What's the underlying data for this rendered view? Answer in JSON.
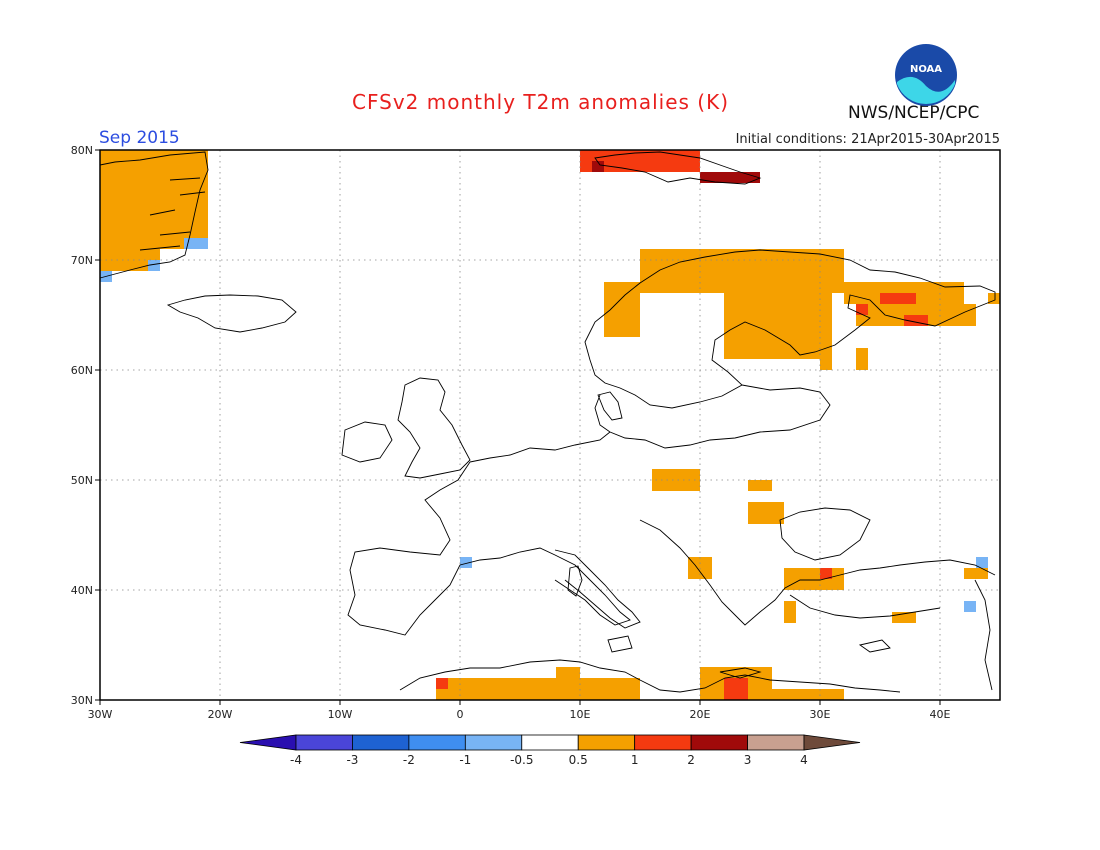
{
  "header": {
    "title": "CFSv2 monthly T2m anomalies (K)",
    "month": "Sep 2015",
    "initial_conditions": "Initial conditions: 21Apr2015-30Apr2015",
    "agency": "NWS/NCEP/CPC",
    "logo_text": "NOAA"
  },
  "map": {
    "lon_range": [
      -30,
      45
    ],
    "lat_range": [
      30,
      80
    ],
    "lat_ticks": [
      "80N",
      "70N",
      "60N",
      "50N",
      "40N",
      "30N"
    ],
    "lon_ticks": [
      "30W",
      "20W",
      "10W",
      "0",
      "10E",
      "20E",
      "30E",
      "40E"
    ],
    "anomaly_cells": [
      {
        "lon": -30,
        "lat": 71,
        "lon2": -21,
        "lat2": 80,
        "level": "0.5-1"
      },
      {
        "lon": -30,
        "lat": 69,
        "lon2": -25,
        "lat2": 71,
        "level": "0.5-1"
      },
      {
        "lon": -23,
        "lat": 71,
        "lon2": -21,
        "lat2": 72,
        "level": "-1--0.5"
      },
      {
        "lon": -26,
        "lat": 69,
        "lon2": -25,
        "lat2": 70,
        "level": "-1--0.5"
      },
      {
        "lon": -30,
        "lat": 68,
        "lon2": -29,
        "lat2": 69,
        "level": "-1--0.5"
      },
      {
        "lon": 10,
        "lat": 78,
        "lon2": 20,
        "lat2": 80,
        "level": "1-2"
      },
      {
        "lon": 20,
        "lat": 77,
        "lon2": 25,
        "lat2": 78,
        "level": "2-3"
      },
      {
        "lon": 11,
        "lat": 78,
        "lon2": 12,
        "lat2": 79,
        "level": "2-3"
      },
      {
        "lon": 12,
        "lat": 63,
        "lon2": 15,
        "lat2": 68,
        "level": "0.5-1"
      },
      {
        "lon": 15,
        "lat": 67,
        "lon2": 32,
        "lat2": 71,
        "level": "0.5-1"
      },
      {
        "lon": 22,
        "lat": 61,
        "lon2": 30,
        "lat2": 67,
        "level": "0.5-1"
      },
      {
        "lon": 28,
        "lat": 62,
        "lon2": 31,
        "lat2": 67,
        "level": "0.5-1"
      },
      {
        "lon": 32,
        "lat": 66,
        "lon2": 42,
        "lat2": 68,
        "level": "0.5-1"
      },
      {
        "lon": 33,
        "lat": 64,
        "lon2": 40,
        "lat2": 66,
        "level": "0.5-1"
      },
      {
        "lon": 40,
        "lat": 64,
        "lon2": 43,
        "lat2": 66,
        "level": "0.5-1"
      },
      {
        "lon": 44,
        "lat": 66,
        "lon2": 45,
        "lat2": 67,
        "level": "0.5-1"
      },
      {
        "lon": 35,
        "lat": 66,
        "lon2": 38,
        "lat2": 67,
        "level": "1-2"
      },
      {
        "lon": 37,
        "lat": 64,
        "lon2": 39,
        "lat2": 65,
        "level": "1-2"
      },
      {
        "lon": 33,
        "lat": 65,
        "lon2": 34,
        "lat2": 66,
        "level": "1-2"
      },
      {
        "lon": 30,
        "lat": 60,
        "lon2": 31,
        "lat2": 62,
        "level": "0.5-1"
      },
      {
        "lon": 33,
        "lat": 60,
        "lon2": 34,
        "lat2": 62,
        "level": "0.5-1"
      },
      {
        "lon": 16,
        "lat": 49,
        "lon2": 20,
        "lat2": 51,
        "level": "0.5-1"
      },
      {
        "lon": 24,
        "lat": 49,
        "lon2": 26,
        "lat2": 50,
        "level": "0.5-1"
      },
      {
        "lon": 24,
        "lat": 46,
        "lon2": 27,
        "lat2": 48,
        "level": "0.5-1"
      },
      {
        "lon": 19,
        "lat": 41,
        "lon2": 21,
        "lat2": 43,
        "level": "0.5-1"
      },
      {
        "lon": 27,
        "lat": 40,
        "lon2": 32,
        "lat2": 42,
        "level": "0.5-1"
      },
      {
        "lon": 30,
        "lat": 41,
        "lon2": 31,
        "lat2": 42,
        "level": "1-2"
      },
      {
        "lon": 27,
        "lat": 37,
        "lon2": 28,
        "lat2": 39,
        "level": "0.5-1"
      },
      {
        "lon": 36,
        "lat": 37,
        "lon2": 38,
        "lat2": 38,
        "level": "0.5-1"
      },
      {
        "lon": 42,
        "lat": 41,
        "lon2": 44,
        "lat2": 42,
        "level": "0.5-1"
      },
      {
        "lon": 43,
        "lat": 42,
        "lon2": 44,
        "lat2": 43,
        "level": "-1--0.5"
      },
      {
        "lon": 0,
        "lat": 42,
        "lon2": 1,
        "lat2": 43,
        "level": "-1--0.5"
      },
      {
        "lon": 42,
        "lat": 38,
        "lon2": 43,
        "lat2": 39,
        "level": "-1--0.5"
      },
      {
        "lon": -2,
        "lat": 30,
        "lon2": 3,
        "lat2": 32,
        "level": "0.5-1"
      },
      {
        "lon": 3,
        "lat": 30,
        "lon2": 15,
        "lat2": 32,
        "level": "0.5-1"
      },
      {
        "lon": 8,
        "lat": 32,
        "lon2": 10,
        "lat2": 33,
        "level": "0.5-1"
      },
      {
        "lon": 20,
        "lat": 30,
        "lon2": 32,
        "lat2": 31,
        "level": "0.5-1"
      },
      {
        "lon": 20,
        "lat": 31,
        "lon2": 26,
        "lat2": 33,
        "level": "0.5-1"
      },
      {
        "lon": 22,
        "lat": 30,
        "lon2": 24,
        "lat2": 32,
        "level": "1-2"
      },
      {
        "lon": -2,
        "lat": 31,
        "lon2": -1,
        "lat2": 32,
        "level": "1-2"
      }
    ]
  },
  "legend": {
    "colors": [
      "#2a0fb0",
      "#4a45d8",
      "#1e62d2",
      "#3f8ef0",
      "#78b4f5",
      "#ffffff",
      "#f5a000",
      "#f53a10",
      "#a00a0a",
      "#c8a090",
      "#6e4a3a"
    ],
    "labels": [
      "-4",
      "-3",
      "-2",
      "-1",
      "-0.5",
      "0.5",
      "1",
      "2",
      "3",
      "4"
    ],
    "level_colors": {
      "-1--0.5": "#78b4f5",
      "0.5-1": "#f5a000",
      "1-2": "#f53a10",
      "2-3": "#a00a0a"
    }
  }
}
